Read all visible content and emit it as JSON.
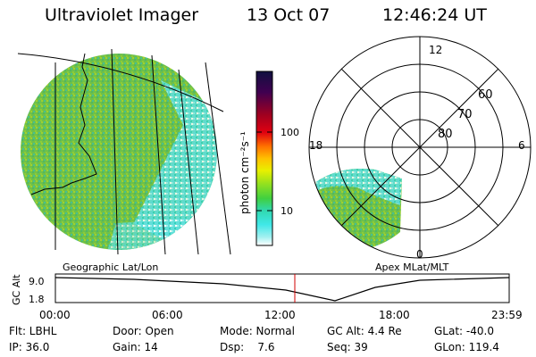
{
  "header": {
    "instrument": "Ultraviolet Imager",
    "date": "13 Oct 07",
    "time": "12:46:24 UT"
  },
  "geo_map": {
    "label": "Geographic Lat/Lon"
  },
  "colorbar": {
    "unit_label": "photon cm⁻²s⁻¹",
    "ticks": [
      "100",
      "10"
    ],
    "scale": "log",
    "colors": [
      "#101040",
      "#400050",
      "#a00020",
      "#e00010",
      "#ff7000",
      "#ffc000",
      "#e8f000",
      "#90e020",
      "#40d040",
      "#30d8b0",
      "#40e8e8",
      "#a0f0f0",
      "#ffffff"
    ]
  },
  "polar_plot": {
    "label": "Apex MLat/MLT",
    "mlt_labels": [
      "12",
      "18",
      "6",
      "0"
    ],
    "mlat_labels": [
      "60",
      "70",
      "80"
    ]
  },
  "altitude_plot": {
    "ylabel": "GC Alt",
    "yticks": [
      "9.0",
      "1.8"
    ],
    "xticks": [
      "00:00",
      "06:00",
      "12:00",
      "18:00",
      "23:59"
    ],
    "current_time_marker": "12:46"
  },
  "info": {
    "row1": {
      "filter": "Flt: LBHL",
      "door": "Door: Open",
      "mode": "Mode: Normal",
      "gc_alt": "GC Alt: 4.4 Re",
      "glat": "GLat: -40.0"
    },
    "row2": {
      "ip": "IP: 36.0",
      "gain": "Gain: 14",
      "dsp": "Dsp:    7.6",
      "seq": "Seq: 39",
      "glon": "GLon: 119.4"
    }
  }
}
